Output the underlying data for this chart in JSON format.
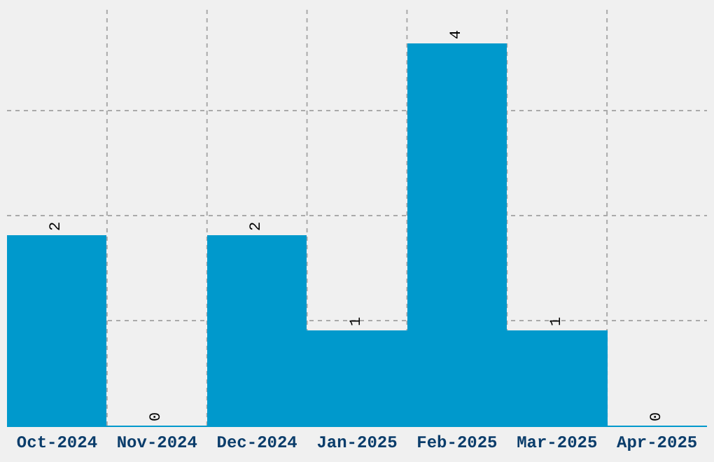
{
  "chart_data": {
    "type": "bar",
    "categories": [
      "Oct-2024",
      "Nov-2024",
      "Dec-2024",
      "Jan-2025",
      "Feb-2025",
      "Mar-2025",
      "Apr-2025"
    ],
    "values": [
      2,
      0,
      2,
      1,
      4,
      1,
      0
    ],
    "color": "#0099cc",
    "data_labels": true,
    "ylim": [
      0,
      4.4
    ],
    "yticks": [
      {
        "value": 1.1,
        "label": null
      },
      {
        "value": 2.2,
        "label": null
      },
      {
        "value": 3.3,
        "label": null
      }
    ],
    "grid": true,
    "tick_labels": "x"
  }
}
